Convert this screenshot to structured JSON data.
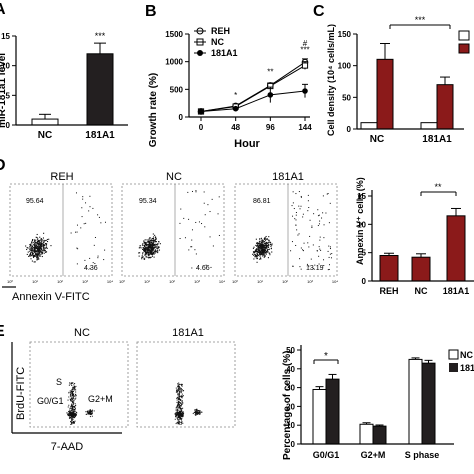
{
  "panel_letters": {
    "a": "A",
    "b": "B",
    "c": "C",
    "d": "D",
    "e": "E"
  },
  "chart_data": [
    {
      "id": "A",
      "type": "bar",
      "categories": [
        "NC",
        "181A1"
      ],
      "values": [
        1.0,
        12.0
      ],
      "errors": [
        0.8,
        1.8
      ],
      "colors": [
        "#ffffff",
        "#231f20"
      ],
      "ylim": [
        0,
        15
      ],
      "yticks": [
        "0",
        "5",
        "10",
        "15"
      ],
      "ylabel": "miR-181a1 level",
      "significance": [
        {
          "category": "181A1",
          "label": "***"
        }
      ]
    },
    {
      "id": "B",
      "type": "line",
      "x": [
        0,
        48,
        96,
        144
      ],
      "xticks": [
        "0",
        "48",
        "96",
        "144"
      ],
      "xlabel": "Hour",
      "ylabel": "Growth rate (%)",
      "ylim": [
        0,
        1500
      ],
      "yticks": [
        "0",
        "500",
        "1000",
        "1500"
      ],
      "series": [
        {
          "name": "REH",
          "marker": "open-circle",
          "values": [
            100,
            200,
            570,
            990
          ],
          "errors": [
            10,
            15,
            45,
            60
          ]
        },
        {
          "name": "NC",
          "marker": "open-square",
          "values": [
            100,
            190,
            560,
            930
          ],
          "errors": [
            10,
            15,
            50,
            70
          ]
        },
        {
          "name": "181A1",
          "marker": "filled-circle",
          "values": [
            100,
            150,
            400,
            470
          ],
          "errors": [
            10,
            20,
            140,
            120
          ]
        }
      ],
      "annotations": [
        {
          "x": 48,
          "label": "*"
        },
        {
          "x": 96,
          "label": "**"
        },
        {
          "x": 144,
          "label": "#"
        },
        {
          "x": 144,
          "label": "***"
        }
      ]
    },
    {
      "id": "C",
      "type": "bar",
      "categories": [
        "NC",
        "181A1"
      ],
      "series": [
        {
          "name": "",
          "color": "#ffffff",
          "values": [
            10,
            10
          ],
          "errors": [
            0,
            0
          ]
        },
        {
          "name": "",
          "color": "#8b1a1a",
          "values": [
            110,
            70
          ],
          "errors": [
            25,
            12
          ]
        }
      ],
      "ylim": [
        0,
        150
      ],
      "yticks": [
        "0",
        "50",
        "100",
        "150"
      ],
      "ylabel": "Cell density (10⁴ cells/mL)",
      "significance": [
        {
          "label": "***"
        }
      ]
    },
    {
      "id": "D-bar",
      "type": "bar",
      "categories": [
        "REH",
        "NC",
        "181A1"
      ],
      "values": [
        4.5,
        4.2,
        11.5
      ],
      "errors": [
        0.4,
        0.6,
        1.3
      ],
      "colors": [
        "#8b1a1a",
        "#8b1a1a",
        "#8b1a1a"
      ],
      "ylim": [
        0,
        15
      ],
      "yticks": [
        "0",
        "5",
        "10",
        "15"
      ],
      "ylabel": "Annexin V⁺ cells (%)",
      "significance": [
        {
          "label": "**"
        }
      ]
    },
    {
      "id": "E-bar",
      "type": "bar",
      "categories": [
        "G0/G1",
        "G2+M",
        "S phase"
      ],
      "series": [
        {
          "name": "NC",
          "color": "#ffffff",
          "values": [
            29,
            10.5,
            45
          ],
          "errors": [
            1.5,
            0.8,
            0.8
          ]
        },
        {
          "name": "181",
          "color": "#231f20",
          "values": [
            34.5,
            9.5,
            43
          ],
          "errors": [
            2.5,
            0.6,
            1.5
          ]
        }
      ],
      "ylim": [
        0,
        50
      ],
      "yticks": [
        "0",
        "10",
        "20",
        "30",
        "40",
        "50"
      ],
      "ylabel": "Percentage of cells (%)",
      "significance": [
        {
          "category": "G0/G1",
          "label": "*"
        }
      ]
    }
  ],
  "flow_apoptosis": {
    "xlabel": "Annexin V-FITC",
    "decades": [
      "10⁰",
      "10¹",
      "10²",
      "10³",
      "10⁴"
    ],
    "plots": [
      {
        "title": "REH",
        "upper_left": "95.64",
        "lower_right": "4.36"
      },
      {
        "title": "NC",
        "upper_left": "95.34",
        "lower_right": "4.66"
      },
      {
        "title": "181A1",
        "upper_left": "86.81",
        "lower_right": "13.19"
      }
    ]
  },
  "flow_cycle": {
    "xlabel": "7-AAD",
    "ylabel": "BrdU-FITC",
    "plots": [
      {
        "title": "NC",
        "labels": [
          "S",
          "G0/G1",
          "G2+M"
        ]
      },
      {
        "title": "181A1",
        "labels": []
      }
    ]
  }
}
